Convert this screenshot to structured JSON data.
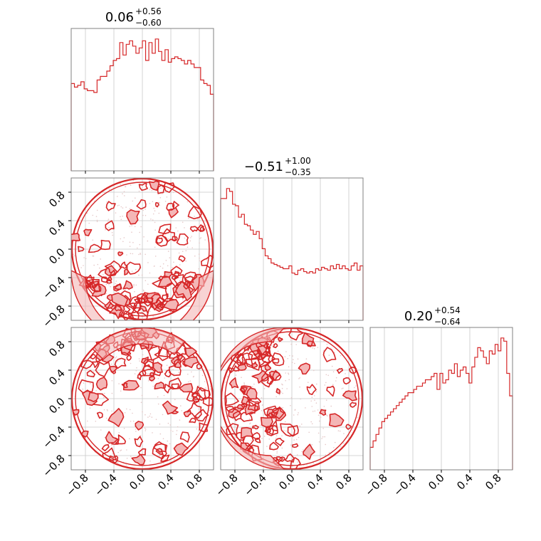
{
  "chart_data": {
    "type": "corner",
    "color": "#d62728",
    "fill_color": "#f4b6b6",
    "grid": true,
    "range": [
      -1.0,
      1.0
    ],
    "tick_values": [
      -0.8,
      -0.4,
      0.0,
      0.4,
      0.8
    ],
    "tick_labels": [
      "−0.8",
      "−0.4",
      "0.0",
      "0.4",
      "0.8"
    ],
    "titles": [
      {
        "median": "0.06",
        "plus": "+0.56",
        "minus": "−0.60"
      },
      {
        "median": "−0.51",
        "plus": "+1.00",
        "minus": "−0.35"
      },
      {
        "median": "0.20",
        "plus": "+0.54",
        "minus": "−0.64"
      }
    ],
    "histograms": [
      {
        "bin_range": [
          -1.0,
          1.0
        ],
        "counts": [
          49,
          47,
          48,
          50,
          46,
          45,
          45,
          44,
          51,
          53,
          53,
          56,
          59,
          62,
          63,
          72,
          65,
          71,
          73,
          70,
          66,
          69,
          73,
          62,
          72,
          66,
          74,
          67,
          62,
          68,
          61,
          63,
          64,
          63,
          62,
          60,
          62,
          60,
          58,
          58,
          51,
          49,
          48,
          43
        ]
      },
      {
        "bin_range": [
          -1.0,
          1.0
        ],
        "counts": [
          85,
          85,
          92,
          90,
          81,
          80,
          72,
          74,
          67,
          66,
          63,
          60,
          62,
          57,
          50,
          45,
          43,
          40,
          39,
          38,
          37,
          36,
          36,
          38,
          33,
          32,
          35,
          36,
          34,
          33,
          34,
          33,
          36,
          35,
          37,
          36,
          35,
          38,
          36,
          39,
          36,
          38,
          36,
          35,
          38,
          40,
          35,
          38
        ]
      },
      {
        "bin_range": [
          -1.0,
          1.0
        ],
        "counts": [
          7,
          9,
          11,
          13,
          15,
          16,
          17,
          18,
          19,
          20,
          21,
          22,
          23,
          24,
          24,
          25,
          26,
          26,
          27,
          28,
          28,
          29,
          30,
          25,
          30,
          27,
          28,
          31,
          30,
          33,
          29,
          31,
          32,
          30,
          27,
          32,
          35,
          38,
          37,
          35,
          33,
          37,
          36,
          39,
          37,
          41,
          40,
          30,
          23
        ]
      }
    ],
    "pairs": [
      {
        "x_param": 0,
        "y_param": 1,
        "shape": "circle"
      },
      {
        "x_param": 0,
        "y_param": 2,
        "shape": "circle"
      },
      {
        "x_param": 1,
        "y_param": 2,
        "shape": "circle"
      }
    ]
  }
}
